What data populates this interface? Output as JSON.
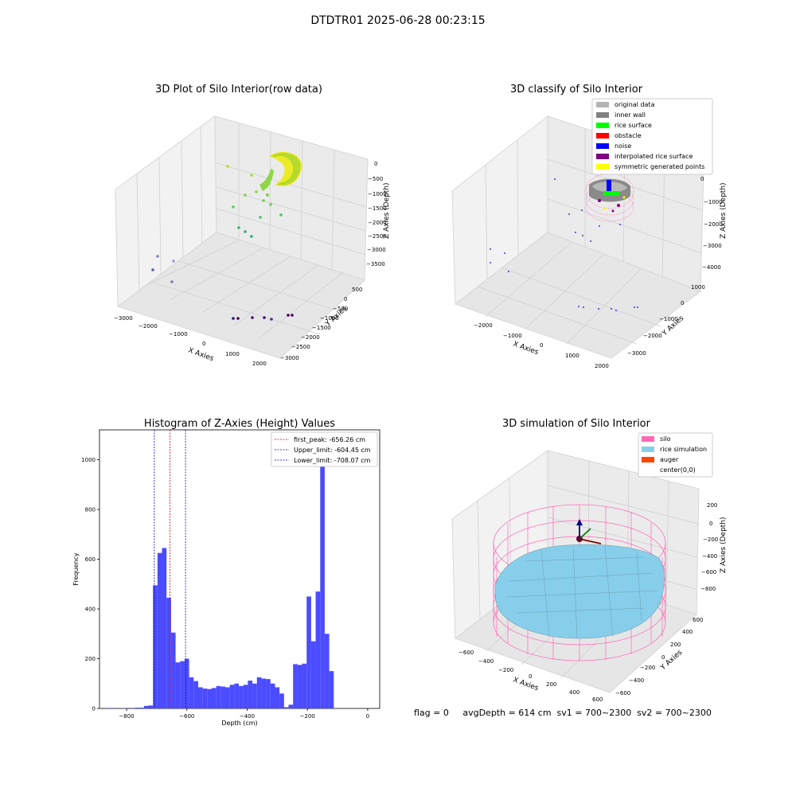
{
  "figure": {
    "title": "DTDTR01 2025-06-28 00:23:15",
    "bottom_info": "flag = 0     avgDepth = 614 cm  sv1 = 700~2300  sv2 = 700~2300"
  },
  "chart_data": [
    {
      "type": "scatter",
      "projection": "3d",
      "title": "3D Plot of Silo Interior(row data)",
      "xlabel": "X Axies",
      "ylabel": "Y Axies",
      "zlabel": "Z Axies (Depth)",
      "xticks": [
        "−3000",
        "−2000",
        "−1000",
        "0",
        "1000",
        "2000"
      ],
      "yticks": [
        "500",
        "0",
        "−500",
        "−1000",
        "−1500",
        "−2000",
        "−2500",
        "−3000"
      ],
      "zticks": [
        "0",
        "−500",
        "−1000",
        "−1500",
        "−2000",
        "−2500",
        "−3000",
        "−3500"
      ],
      "xlim": [
        -3000,
        2000
      ],
      "ylim": [
        -3000,
        800
      ],
      "zlim": [
        -3700,
        200
      ],
      "colormap": "viridis (by depth)",
      "grid": true
    },
    {
      "type": "scatter",
      "projection": "3d",
      "title": "3D classify of Silo Interior",
      "xlabel": "X Axies",
      "ylabel": "Y Axies",
      "zlabel": "Z Axies (Depth)",
      "xticks": [
        "−2000",
        "−1000",
        "0",
        "1000",
        "2000"
      ],
      "yticks": [
        "1000",
        "0",
        "−1000",
        "−2000",
        "−3000"
      ],
      "zticks": [
        "0",
        "−1000",
        "−2000",
        "−3000",
        "−4000"
      ],
      "legend_position": "top-right",
      "legend": [
        {
          "label": "original data",
          "color": "#b4b4b4"
        },
        {
          "label": "inner wall",
          "color": "#808080"
        },
        {
          "label": "rice surface",
          "color": "#00ff00"
        },
        {
          "label": "obstacle",
          "color": "#ff0000"
        },
        {
          "label": "noise",
          "color": "#0000ff"
        },
        {
          "label": "interpolated rice surface",
          "color": "#800080"
        },
        {
          "label": "symmetric generated points",
          "color": "#ffff00"
        }
      ],
      "grid": true
    },
    {
      "type": "bar",
      "subtype": "histogram",
      "title": "Histogram of Z-Axies (Height) Values",
      "xlabel": "Depth (cm)",
      "ylabel": "Frequency",
      "xlim": [
        -890,
        40
      ],
      "ylim": [
        0,
        1120
      ],
      "xticks": [
        -800,
        -600,
        -400,
        -200,
        0
      ],
      "xtick_labels": [
        "−800",
        "−600",
        "−400",
        "−200",
        "0"
      ],
      "yticks": [
        0,
        200,
        400,
        600,
        800,
        1000
      ],
      "bin_width": 15,
      "bar_color": "#4b4bff",
      "bins": [
        {
          "x": -855,
          "v": 2
        },
        {
          "x": -810,
          "v": 1
        },
        {
          "x": -780,
          "v": 2
        },
        {
          "x": -765,
          "v": 3
        },
        {
          "x": -750,
          "v": 3
        },
        {
          "x": -735,
          "v": 10
        },
        {
          "x": -720,
          "v": 12
        },
        {
          "x": -705,
          "v": 495
        },
        {
          "x": -690,
          "v": 625
        },
        {
          "x": -675,
          "v": 645
        },
        {
          "x": -660,
          "v": 445
        },
        {
          "x": -645,
          "v": 305
        },
        {
          "x": -630,
          "v": 185
        },
        {
          "x": -615,
          "v": 190
        },
        {
          "x": -600,
          "v": 200
        },
        {
          "x": -585,
          "v": 125
        },
        {
          "x": -570,
          "v": 110
        },
        {
          "x": -555,
          "v": 85
        },
        {
          "x": -540,
          "v": 80
        },
        {
          "x": -525,
          "v": 78
        },
        {
          "x": -510,
          "v": 82
        },
        {
          "x": -495,
          "v": 90
        },
        {
          "x": -480,
          "v": 88
        },
        {
          "x": -465,
          "v": 85
        },
        {
          "x": -450,
          "v": 95
        },
        {
          "x": -435,
          "v": 100
        },
        {
          "x": -420,
          "v": 90
        },
        {
          "x": -405,
          "v": 95
        },
        {
          "x": -390,
          "v": 112
        },
        {
          "x": -375,
          "v": 100
        },
        {
          "x": -360,
          "v": 125
        },
        {
          "x": -345,
          "v": 120
        },
        {
          "x": -330,
          "v": 118
        },
        {
          "x": -315,
          "v": 100
        },
        {
          "x": -300,
          "v": 85
        },
        {
          "x": -285,
          "v": 60
        },
        {
          "x": -270,
          "v": 5
        },
        {
          "x": -255,
          "v": 15
        },
        {
          "x": -240,
          "v": 178
        },
        {
          "x": -225,
          "v": 175
        },
        {
          "x": -210,
          "v": 180
        },
        {
          "x": -195,
          "v": 450
        },
        {
          "x": -180,
          "v": 270
        },
        {
          "x": -165,
          "v": 470
        },
        {
          "x": -150,
          "v": 1060
        },
        {
          "x": -135,
          "v": 300
        },
        {
          "x": -120,
          "v": 150
        }
      ],
      "vlines": [
        {
          "label": "first_peak: -656.26 cm",
          "x": -656.26,
          "color": "#dd0000"
        },
        {
          "label": "Upper_limit: -604.45 cm",
          "x": -604.45,
          "color": "#0000cc"
        },
        {
          "label": "Lower_limit: -708.07 cm",
          "x": -708.07,
          "color": "#0000cc"
        }
      ],
      "legend_position": "top-right"
    },
    {
      "type": "surface",
      "projection": "3d",
      "title": "3D simulation of Silo Interior",
      "xlabel": "X Axies",
      "ylabel": "Y Axies",
      "zlabel": "Z Axies (Depth)",
      "xticks": [
        "−600",
        "−400",
        "−200",
        "0",
        "200",
        "400",
        "600"
      ],
      "yticks": [
        "600",
        "400",
        "200",
        "0",
        "−200",
        "−400",
        "−600"
      ],
      "zticks": [
        "200",
        "0",
        "−200",
        "−400",
        "−600",
        "−800"
      ],
      "legend_position": "top-right",
      "legend": [
        {
          "label": "silo",
          "color": "#ff69b4"
        },
        {
          "label": "rice simulation",
          "color": "#87ceeb"
        },
        {
          "label": "auger",
          "color": "#ff4500"
        },
        {
          "label": "center(0,0)",
          "color": ""
        }
      ],
      "grid": true
    }
  ]
}
